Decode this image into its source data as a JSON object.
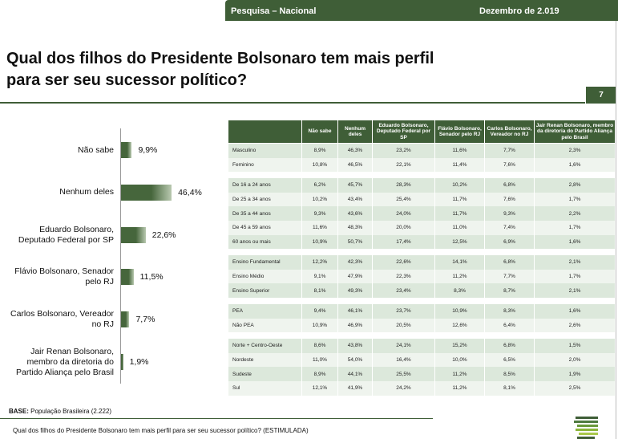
{
  "header": {
    "survey": "Pesquisa – Nacional",
    "date": "Dezembro de 2.019",
    "title": [
      "Qual dos filhos do Presidente Bolsonaro tem mais perfil",
      "para ser seu sucessor político?"
    ],
    "page": "7"
  },
  "chart_data": {
    "type": "bar",
    "orientation": "horizontal",
    "categories": [
      "Não sabe",
      "Nenhum deles",
      "Eduardo Bolsonaro, Deputado Federal por SP",
      "Flávio Bolsonaro, Senador pelo RJ",
      "Carlos Bolsonaro, Vereador no RJ",
      "Jair Renan Bolsonaro, membro da diretoria do Partido Aliança pelo Brasil"
    ],
    "values": [
      9.9,
      46.4,
      22.6,
      11.5,
      7.7,
      1.9
    ],
    "value_labels": [
      "9,9%",
      "46,4%",
      "22,6%",
      "11,5%",
      "7,7%",
      "1,9%"
    ],
    "color": "#46663c"
  },
  "table": {
    "columns": [
      "Não sabe",
      "Nenhum deles",
      "Eduardo Bolsonaro, Deputado Federal por SP",
      "Flávio Bolsonaro, Senador pelo RJ",
      "Carlos Bolsonaro, Vereador no RJ",
      "Jair Renan Bolsonaro, membro da diretoria do Partido Aliança pelo Brasil"
    ],
    "groups": [
      [
        [
          "Masculino",
          "8,9%",
          "46,3%",
          "23,2%",
          "11,6%",
          "7,7%",
          "2,3%"
        ],
        [
          "Feminino",
          "10,8%",
          "46,5%",
          "22,1%",
          "11,4%",
          "7,6%",
          "1,6%"
        ]
      ],
      [
        [
          "De 16 a 24 anos",
          "6,2%",
          "45,7%",
          "28,3%",
          "10,2%",
          "6,8%",
          "2,8%"
        ],
        [
          "De 25 a 34 anos",
          "10,2%",
          "43,4%",
          "25,4%",
          "11,7%",
          "7,6%",
          "1,7%"
        ],
        [
          "De 35 a 44 anos",
          "9,3%",
          "43,6%",
          "24,0%",
          "11,7%",
          "9,3%",
          "2,2%"
        ],
        [
          "De 45 a 59 anos",
          "11,6%",
          "48,3%",
          "20,0%",
          "11,0%",
          "7,4%",
          "1,7%"
        ],
        [
          "60 anos ou mais",
          "10,9%",
          "50,7%",
          "17,4%",
          "12,5%",
          "6,9%",
          "1,6%"
        ]
      ],
      [
        [
          "Ensino Fundamental",
          "12,2%",
          "42,3%",
          "22,6%",
          "14,1%",
          "6,8%",
          "2,1%"
        ],
        [
          "Ensino Médio",
          "9,1%",
          "47,9%",
          "22,3%",
          "11,2%",
          "7,7%",
          "1,7%"
        ],
        [
          "Ensino Superior",
          "8,1%",
          "49,3%",
          "23,4%",
          "8,3%",
          "8,7%",
          "2,1%"
        ]
      ],
      [
        [
          "PEA",
          "9,4%",
          "46,1%",
          "23,7%",
          "10,9%",
          "8,3%",
          "1,6%"
        ],
        [
          "Não PEA",
          "10,9%",
          "46,9%",
          "20,5%",
          "12,6%",
          "6,4%",
          "2,6%"
        ]
      ],
      [
        [
          "Norte + Centro-Oeste",
          "8,6%",
          "43,8%",
          "24,1%",
          "15,2%",
          "6,8%",
          "1,5%"
        ],
        [
          "Nordeste",
          "11,0%",
          "54,0%",
          "16,4%",
          "10,0%",
          "6,5%",
          "2,0%"
        ],
        [
          "Sudeste",
          "8,9%",
          "44,1%",
          "25,5%",
          "11,2%",
          "8,5%",
          "1,9%"
        ],
        [
          "Sul",
          "12,1%",
          "41,9%",
          "24,2%",
          "11,2%",
          "8,1%",
          "2,5%"
        ]
      ]
    ]
  },
  "footer": {
    "base_label": "BASE:",
    "base_text": "População Brasileira (2.222)",
    "question": "Qual dos filhos do Presidente Bolsonaro tem mais perfil para ser seu sucessor político? (ESTIMULADA)"
  }
}
